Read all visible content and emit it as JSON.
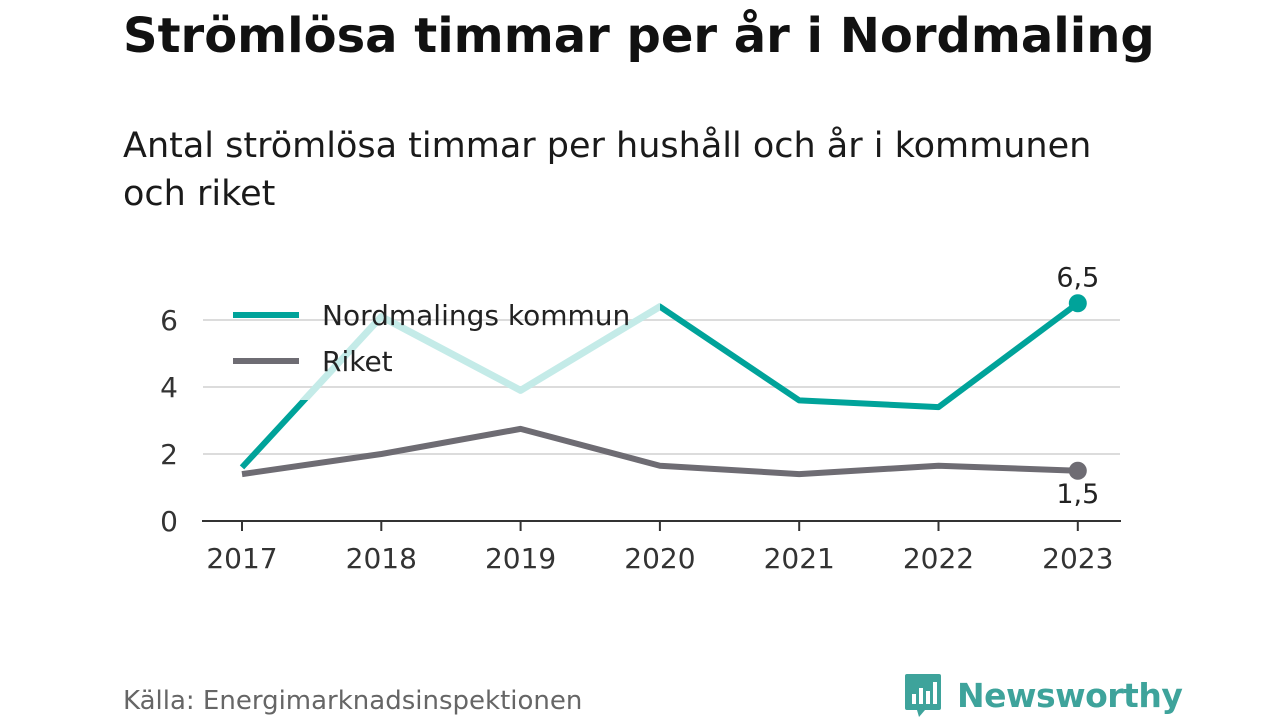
{
  "title": "Strömlösa timmar per år i Nordmaling",
  "subtitle": "Antal strömlösa timmar per hushåll och år i kommunen och riket",
  "source": "Källa: Energimarknadsinspektionen",
  "brand": {
    "name": "Newsworthy",
    "icon": "newsworthy-logo-icon",
    "color": "#3ea39b"
  },
  "colors": {
    "nordmaling": "#00a39a",
    "nordmaling_faded": "#c4ebe8",
    "riket": "#6e6c73",
    "grid": "#dcdcdc",
    "axis": "#333333"
  },
  "chart_data": {
    "type": "line",
    "title": "Strömlösa timmar per år i Nordmaling",
    "subtitle": "Antal strömlösa timmar per hushåll och år i kommunen och riket",
    "x": [
      "2017",
      "2018",
      "2019",
      "2020",
      "2021",
      "2022",
      "2023"
    ],
    "ylim": [
      0,
      7
    ],
    "yticks": [
      0,
      2,
      4,
      6
    ],
    "grid": true,
    "legend_position": "top-left",
    "series": [
      {
        "name": "Nordmalings kommun",
        "values": [
          1.6,
          6.1,
          3.9,
          6.4,
          3.6,
          3.4,
          6.5
        ],
        "end_label": "6,5"
      },
      {
        "name": "Riket",
        "values": [
          1.4,
          2.0,
          2.75,
          1.65,
          1.4,
          1.65,
          1.5
        ],
        "end_label": "1,5"
      }
    ]
  }
}
